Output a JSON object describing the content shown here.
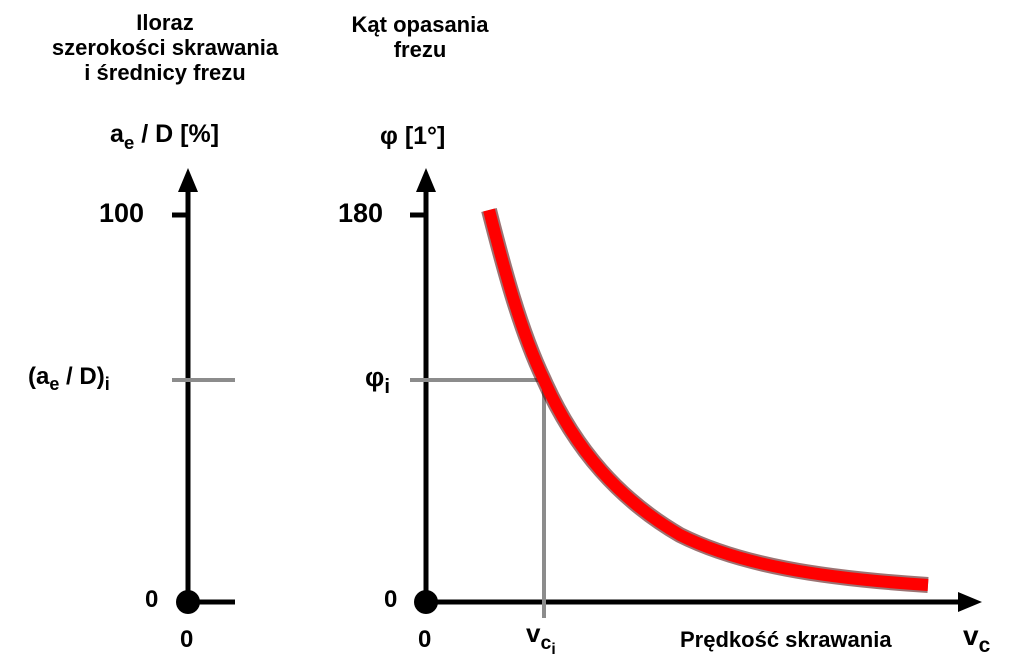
{
  "left_panel": {
    "title_lines": [
      "Iloraz",
      "szerokości skrawania",
      "i średnicy frezu"
    ],
    "axis_title_main": "a",
    "axis_title_sub": "e",
    "axis_title_rest": " / D [%]",
    "tick_max": "100",
    "tick_zero": "0",
    "tick_i_open": "(a",
    "tick_i_sub": "e",
    "tick_i_mid": " / D)",
    "tick_i_sub2": "i",
    "x_zero": "0"
  },
  "right_panel": {
    "title_lines": [
      "Kąt opasania",
      "frezu"
    ],
    "axis_title": "φ [1°]",
    "tick_max": "180",
    "tick_zero": "0",
    "tick_i": "φ",
    "tick_i_sub": "i",
    "x_zero": "0",
    "x_i": "v",
    "x_i_sub": "c",
    "x_i_sub2": "i",
    "x_label": "Prędkość skrawania",
    "x_symbol": "v",
    "x_symbol_sub": "c"
  },
  "colors": {
    "curve": "#ff0000",
    "curve_outline": "#4a0000",
    "guide": "#8c8c8c",
    "axis": "#000000"
  }
}
